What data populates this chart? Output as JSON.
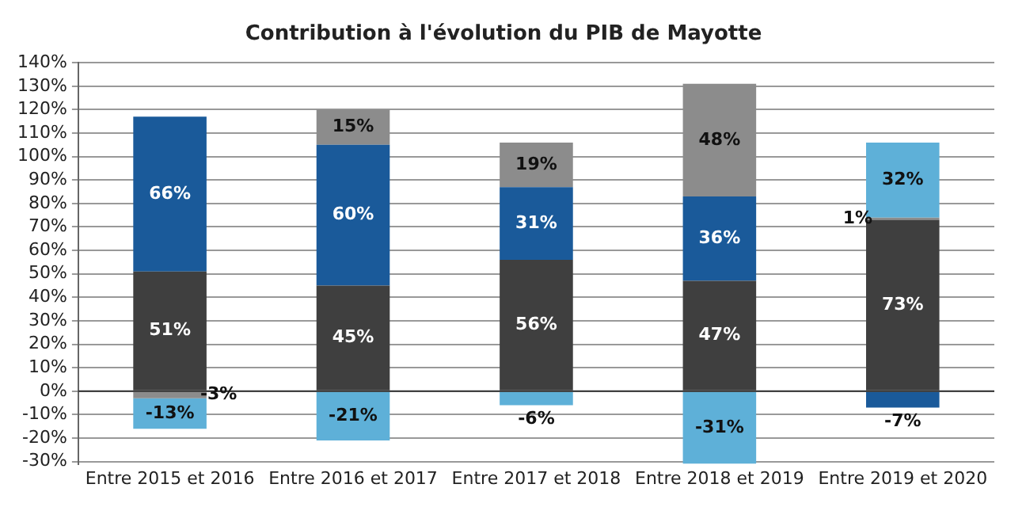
{
  "chart_data": {
    "type": "bar",
    "title": "Contribution à l'évolution du PIB de Mayotte",
    "stacked": true,
    "grid": "y",
    "categories": [
      "Entre 2015 et 2016",
      "Entre 2016 et 2017",
      "Entre 2017 et 2018",
      "Entre 2018 et 2019",
      "Entre 2019 et 2020"
    ],
    "series": [
      {
        "color": "#3f3f3f",
        "values": [
          51,
          45,
          56,
          47,
          73
        ],
        "value_labels": [
          "51%",
          "45%",
          "56%",
          "47%",
          "73%"
        ]
      },
      {
        "color": "#1a5a9a",
        "values": [
          66,
          60,
          31,
          36,
          -7
        ],
        "value_labels": [
          "66%",
          "60%",
          "31%",
          "36%",
          "-7%"
        ]
      },
      {
        "color": "#8c8c8c",
        "values": [
          -3,
          15,
          19,
          48,
          1
        ],
        "value_labels": [
          "-3%",
          "15%",
          "19%",
          "48%",
          "1%"
        ]
      },
      {
        "color": "#5eb0d8",
        "values": [
          -13,
          -21,
          -6,
          -31,
          32
        ],
        "value_labels": [
          "-13%",
          "-21%",
          "-6%",
          "-31%",
          "32%"
        ]
      }
    ],
    "ylim": [
      -31,
      140
    ],
    "yticks": [
      {
        "value": -30,
        "label": "-30%"
      },
      {
        "value": -20,
        "label": "-20%"
      },
      {
        "value": -10,
        "label": "-10%"
      },
      {
        "value": 0,
        "label": "0%"
      },
      {
        "value": 10,
        "label": "10%"
      },
      {
        "value": 20,
        "label": "20%"
      },
      {
        "value": 30,
        "label": "30%"
      },
      {
        "value": 40,
        "label": "40%"
      },
      {
        "value": 50,
        "label": "50%"
      },
      {
        "value": 60,
        "label": "60%"
      },
      {
        "value": 70,
        "label": "70%"
      },
      {
        "value": 80,
        "label": "80%"
      },
      {
        "value": 90,
        "label": "90%"
      },
      {
        "value": 100,
        "label": "100%"
      },
      {
        "value": 110,
        "label": "110%"
      },
      {
        "value": 120,
        "label": "120%"
      },
      {
        "value": 130,
        "label": "130%"
      },
      {
        "value": 140,
        "label": "140%"
      }
    ]
  }
}
